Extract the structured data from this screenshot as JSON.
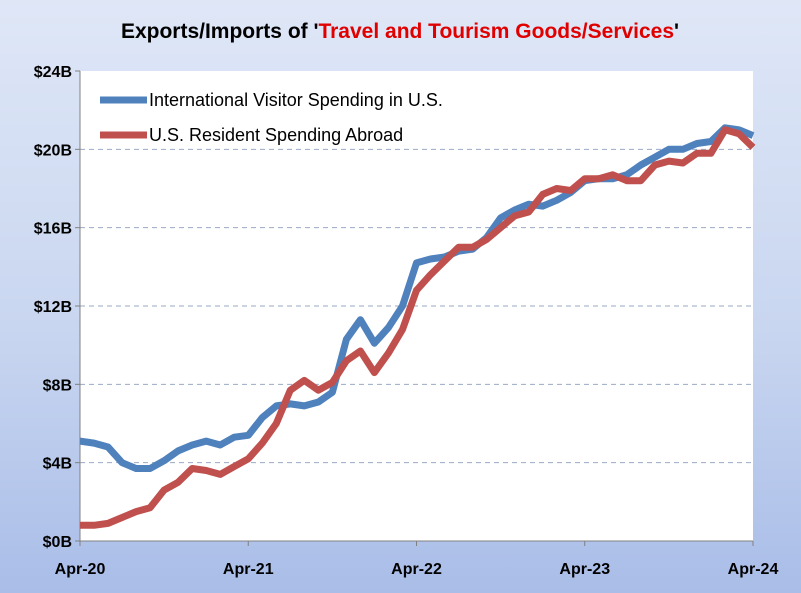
{
  "chart_data": {
    "type": "line",
    "title_prefix": "Exports/Imports of '",
    "title_highlight": "Travel and Tourism Goods/Services",
    "title_suffix": "'",
    "title_colors": {
      "prefix": "#000000",
      "highlight": "#e00000"
    },
    "xlabel": "",
    "ylabel": "",
    "ylim": [
      0,
      24
    ],
    "y_ticks": [
      0,
      4,
      8,
      12,
      16,
      20,
      24
    ],
    "y_tick_labels": [
      "$0B",
      "$4B",
      "$8B",
      "$12B",
      "$16B",
      "$20B",
      "$24B"
    ],
    "x_tick_labels": [
      "Apr-20",
      "Apr-21",
      "Apr-22",
      "Apr-23",
      "Apr-24"
    ],
    "x_tick_index": [
      0,
      12,
      24,
      36,
      48
    ],
    "grid": {
      "horizontal": true,
      "style": "dashed",
      "color": "#ffffff"
    },
    "plot_background": "#ffffff",
    "legend": {
      "placement": "top-left"
    },
    "series": [
      {
        "name": "International Visitor Spending in U.S.",
        "color": "#4f81bd",
        "values": [
          5.1,
          5.0,
          4.8,
          4.0,
          3.7,
          3.7,
          4.1,
          4.6,
          4.9,
          5.1,
          4.9,
          5.3,
          5.4,
          6.3,
          6.9,
          7.0,
          6.9,
          7.1,
          7.6,
          10.3,
          11.3,
          10.1,
          10.9,
          12.0,
          14.2,
          14.4,
          14.5,
          14.8,
          14.9,
          15.5,
          16.5,
          16.9,
          17.2,
          17.1,
          17.4,
          17.8,
          18.4,
          18.5,
          18.5,
          18.7,
          19.2,
          19.6,
          20.0,
          20.0,
          20.3,
          20.4,
          21.1,
          21.0,
          20.7
        ]
      },
      {
        "name": "U.S. Resident Spending Abroad",
        "color": "#c0504d",
        "values": [
          0.8,
          0.8,
          0.9,
          1.2,
          1.5,
          1.7,
          2.6,
          3.0,
          3.7,
          3.6,
          3.4,
          3.8,
          4.2,
          5.0,
          6.0,
          7.7,
          8.2,
          7.7,
          8.1,
          9.2,
          9.7,
          8.6,
          9.6,
          10.8,
          12.8,
          13.6,
          14.3,
          15.0,
          15.0,
          15.4,
          16.0,
          16.6,
          16.8,
          17.7,
          18.0,
          17.9,
          18.5,
          18.5,
          18.7,
          18.4,
          18.4,
          19.2,
          19.4,
          19.3,
          19.8,
          19.8,
          21.0,
          20.8,
          20.1
        ]
      }
    ]
  }
}
